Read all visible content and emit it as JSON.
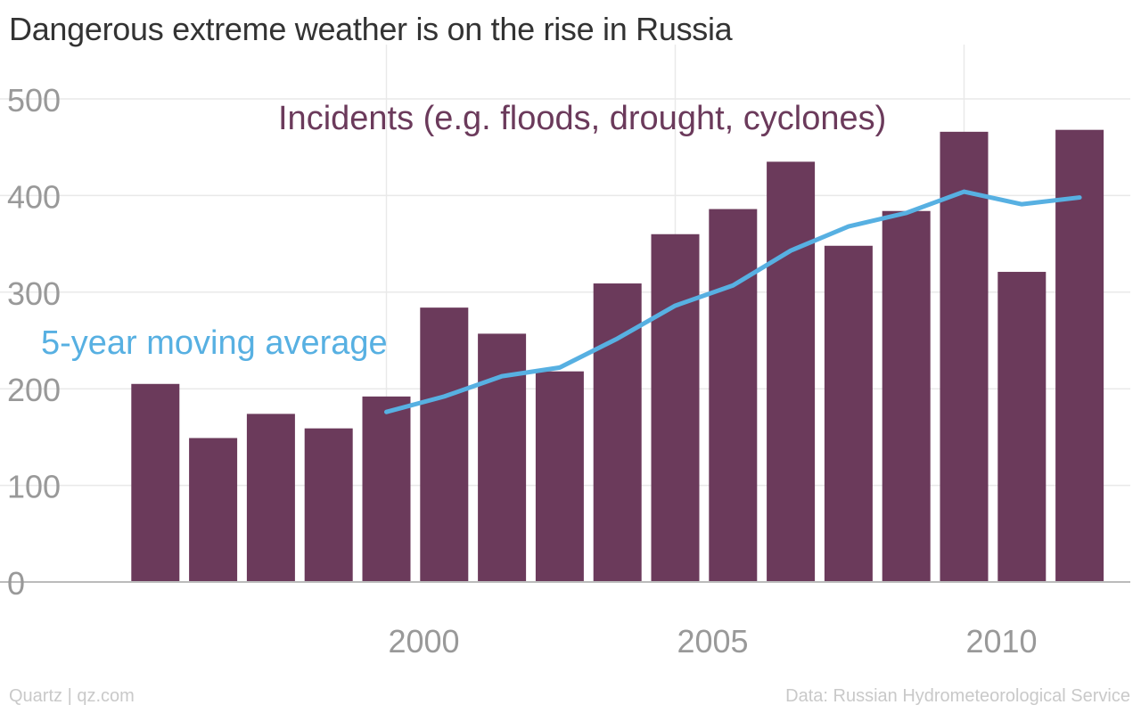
{
  "page": {
    "title": "Dangerous extreme weather is on the rise in Russia",
    "footer_left": "Quartz | qz.com",
    "footer_right": "Data: Russian Hydrometeorological Service"
  },
  "colors": {
    "bars": "#6b3a5b",
    "line": "#57b0e2",
    "grid": "#e9e9e9",
    "tick_text": "#999999",
    "axis": "#bbbbbb",
    "title_text": "#333333",
    "footer_text": "#c9c9c9"
  },
  "chart_data": {
    "type": "bar",
    "title": "Dangerous extreme weather is on the rise in Russia",
    "x": [
      1996,
      1997,
      1998,
      1999,
      2000,
      2001,
      2002,
      2003,
      2004,
      2005,
      2006,
      2007,
      2008,
      2009,
      2010,
      2011,
      2012
    ],
    "series": [
      {
        "name": "Incidents (e.g. floods, drought, cyclones)",
        "type": "bar",
        "values": [
          205,
          149,
          174,
          159,
          192,
          284,
          257,
          218,
          309,
          360,
          386,
          435,
          348,
          384,
          466,
          321,
          468
        ]
      },
      {
        "name": "5-year moving average",
        "type": "line",
        "x": [
          2000,
          2001,
          2002,
          2003,
          2004,
          2005,
          2006,
          2007,
          2008,
          2009,
          2010,
          2011,
          2012
        ],
        "values": [
          176,
          192,
          213,
          222,
          252,
          286,
          307,
          343,
          368,
          382,
          404,
          391,
          398
        ]
      }
    ],
    "xlabel": "",
    "ylabel": "",
    "xlim": [
      1995,
      2012.6
    ],
    "ylim": [
      0,
      500
    ],
    "yticks": [
      0,
      100,
      200,
      300,
      400,
      500
    ],
    "xticks": [
      2000,
      2005,
      2010
    ],
    "grid": true,
    "legend": "inline labels"
  }
}
